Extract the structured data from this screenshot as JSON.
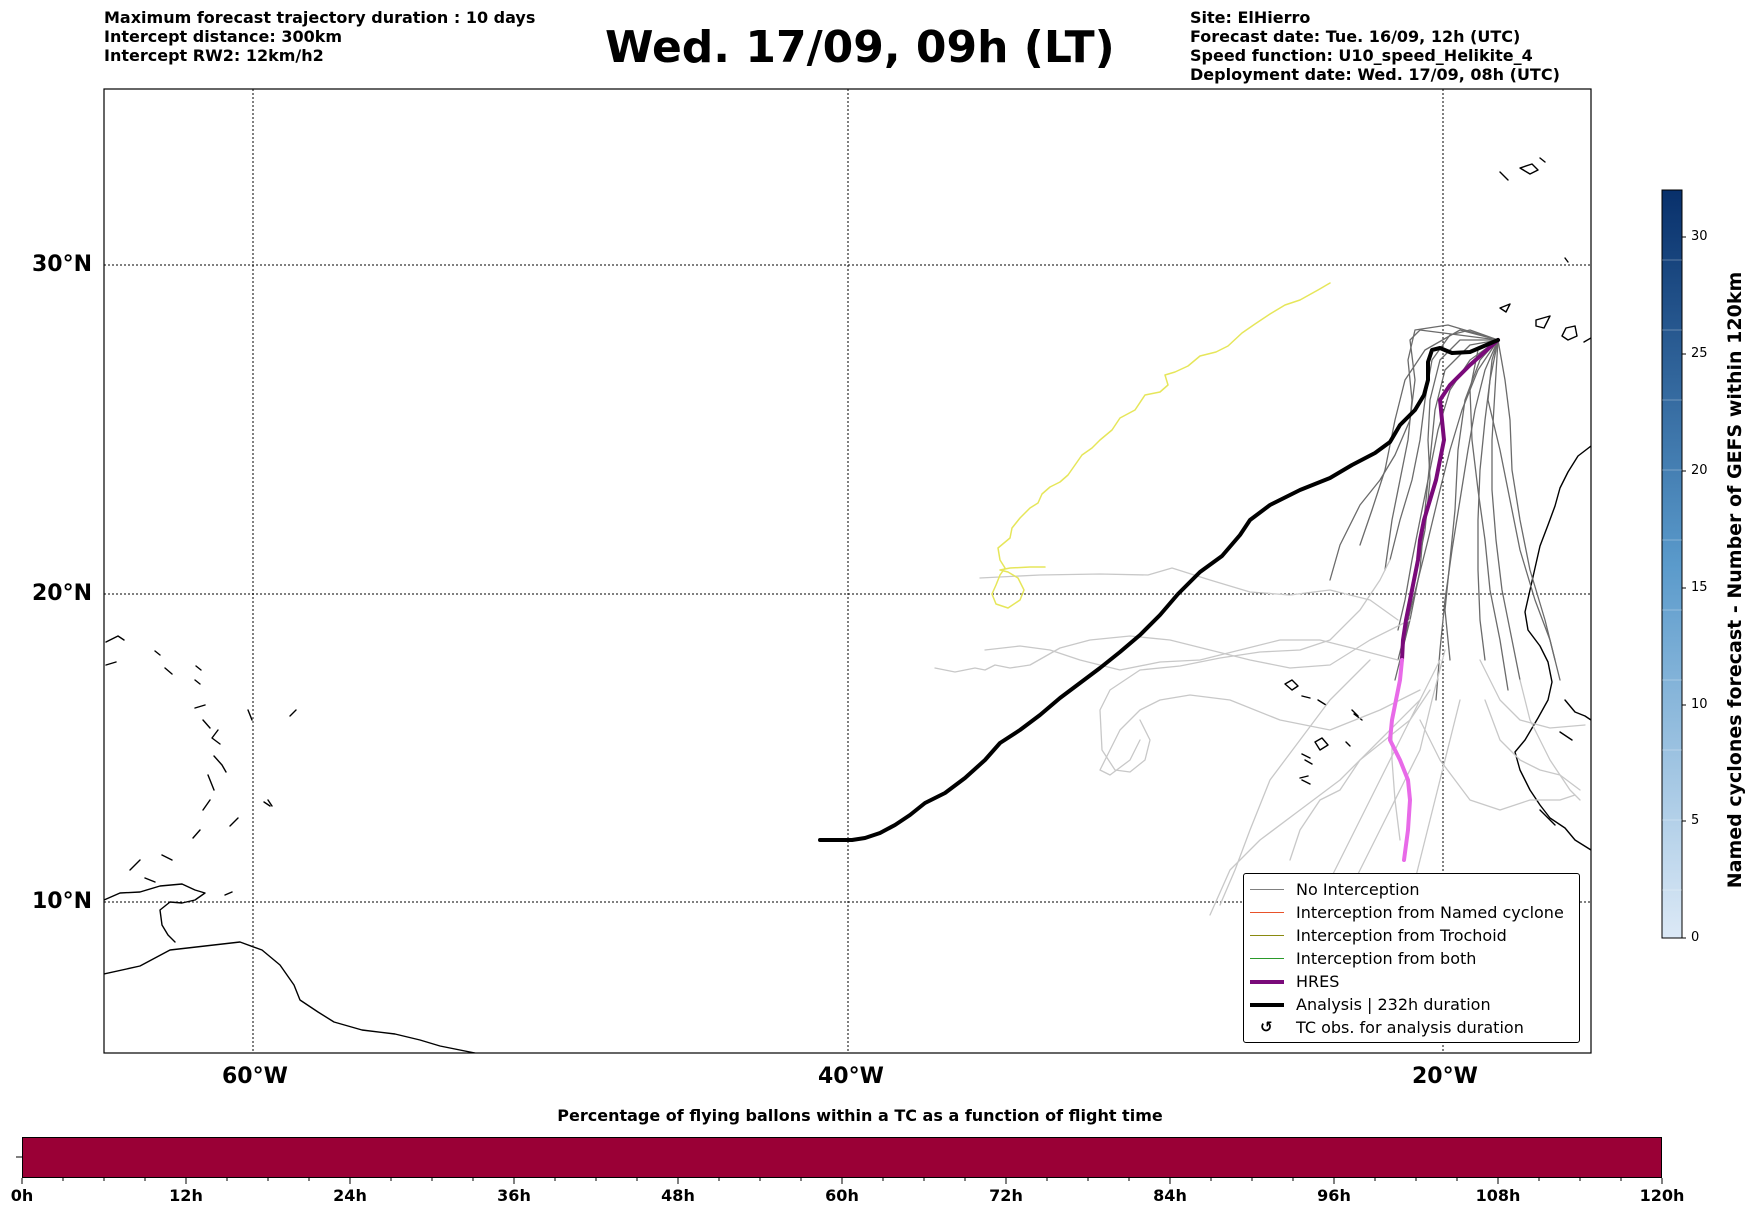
{
  "header": {
    "left_lines": [
      "Maximum forecast trajectory duration : 10 days",
      "Intercept distance: 300km",
      "Intercept RW2: 12km/h2"
    ],
    "title": "Wed. 17/09, 09h (LT)",
    "right_lines": [
      "Site: ElHierro",
      "Forecast date: Tue. 16/09, 12h (UTC)",
      "Speed function: U10_speed_Helikite_4",
      "Deployment date: Wed. 17/09, 08h (UTC)"
    ]
  },
  "map": {
    "lat_labels": [
      "30°N",
      "20°N",
      "10°N"
    ],
    "lon_labels": [
      "60°W",
      "40°W",
      "20°W"
    ],
    "gridlines": true,
    "colors": {
      "coastline": "#000000",
      "ensemble_dark": "#6b6b6b",
      "ensemble_light": "#c8c8c8",
      "hres": "#7a0a7a",
      "hres_tail": "#e86ae8",
      "analysis": "#000000",
      "yellow_track": "#e6e65a"
    }
  },
  "legend": {
    "items": [
      {
        "label": "No Interception",
        "color": "#808080",
        "style": "thin"
      },
      {
        "label": "Interception from Named cyclone",
        "color": "#e8522a",
        "style": "thin"
      },
      {
        "label": "Interception from Trochoid",
        "color": "#8a8a10",
        "style": "thin"
      },
      {
        "label": "Interception from both",
        "color": "#2a9a2a",
        "style": "thin"
      },
      {
        "label": "HRES",
        "color": "#7a0a7a",
        "style": "thick"
      },
      {
        "label": "Analysis | 232h duration",
        "color": "#000000",
        "style": "thick"
      },
      {
        "label": "TC obs. for analysis duration",
        "color": "#000000",
        "style": "symbol",
        "symbol": "↺"
      }
    ]
  },
  "colorbar": {
    "label": "Named cyclones forecast - Number of GEFS within 120km",
    "ticks": [
      "0",
      "5",
      "10",
      "15",
      "20",
      "25",
      "30"
    ],
    "max": 32
  },
  "bottom": {
    "title": "Percentage of flying ballons within a TC as a function of flight time",
    "bar_color": "#9a0036",
    "ticks": [
      "0h",
      "12h",
      "24h",
      "36h",
      "48h",
      "60h",
      "72h",
      "84h",
      "96h",
      "108h",
      "120h"
    ]
  }
}
